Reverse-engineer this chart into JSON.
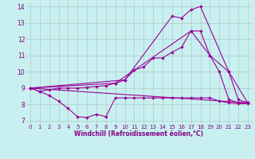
{
  "xlabel": "Windchill (Refroidissement éolien,°C)",
  "bg_color": "#c8f0f0",
  "grid_color": "#b0c8c8",
  "line_color": "#990099",
  "xlim": [
    -0.5,
    23.5
  ],
  "ylim": [
    6.8,
    14.3
  ],
  "xticks": [
    0,
    1,
    2,
    3,
    4,
    5,
    6,
    7,
    8,
    9,
    10,
    11,
    12,
    13,
    14,
    15,
    16,
    17,
    18,
    19,
    20,
    21,
    22,
    23
  ],
  "yticks": [
    7,
    8,
    9,
    10,
    11,
    12,
    13,
    14
  ],
  "series1_x": [
    0,
    1,
    2,
    3,
    4,
    5,
    6,
    7,
    8,
    9,
    10,
    11,
    12,
    13,
    14,
    15,
    16,
    17,
    18,
    19,
    20,
    21,
    22,
    23
  ],
  "series1_y": [
    9.0,
    8.8,
    8.55,
    8.2,
    7.75,
    7.25,
    7.2,
    7.4,
    7.25,
    8.4,
    8.4,
    8.4,
    8.4,
    8.4,
    8.4,
    8.4,
    8.4,
    8.4,
    8.4,
    8.4,
    8.2,
    8.1,
    8.05,
    8.05
  ],
  "series2_x": [
    0,
    1,
    2,
    3,
    4,
    5,
    6,
    7,
    8,
    9,
    10,
    11,
    12,
    13,
    14,
    15,
    16,
    17,
    18,
    19,
    20,
    21,
    22,
    23
  ],
  "series2_y": [
    9.0,
    8.8,
    8.9,
    9.0,
    9.0,
    9.0,
    9.05,
    9.1,
    9.15,
    9.3,
    9.5,
    10.1,
    10.3,
    10.85,
    10.85,
    11.2,
    11.5,
    12.5,
    12.5,
    11.0,
    10.0,
    8.3,
    8.1,
    8.1
  ],
  "series3_x": [
    0,
    23
  ],
  "series3_y": [
    9.0,
    8.1
  ],
  "series4_x": [
    0,
    9,
    17,
    19,
    21,
    23
  ],
  "series4_y": [
    9.0,
    9.3,
    12.5,
    11.0,
    10.0,
    8.1
  ],
  "series5_x": [
    0,
    10,
    15,
    16,
    17,
    18,
    21,
    22,
    23
  ],
  "series5_y": [
    9.0,
    9.5,
    13.4,
    13.3,
    13.8,
    14.0,
    10.0,
    8.3,
    8.1
  ]
}
